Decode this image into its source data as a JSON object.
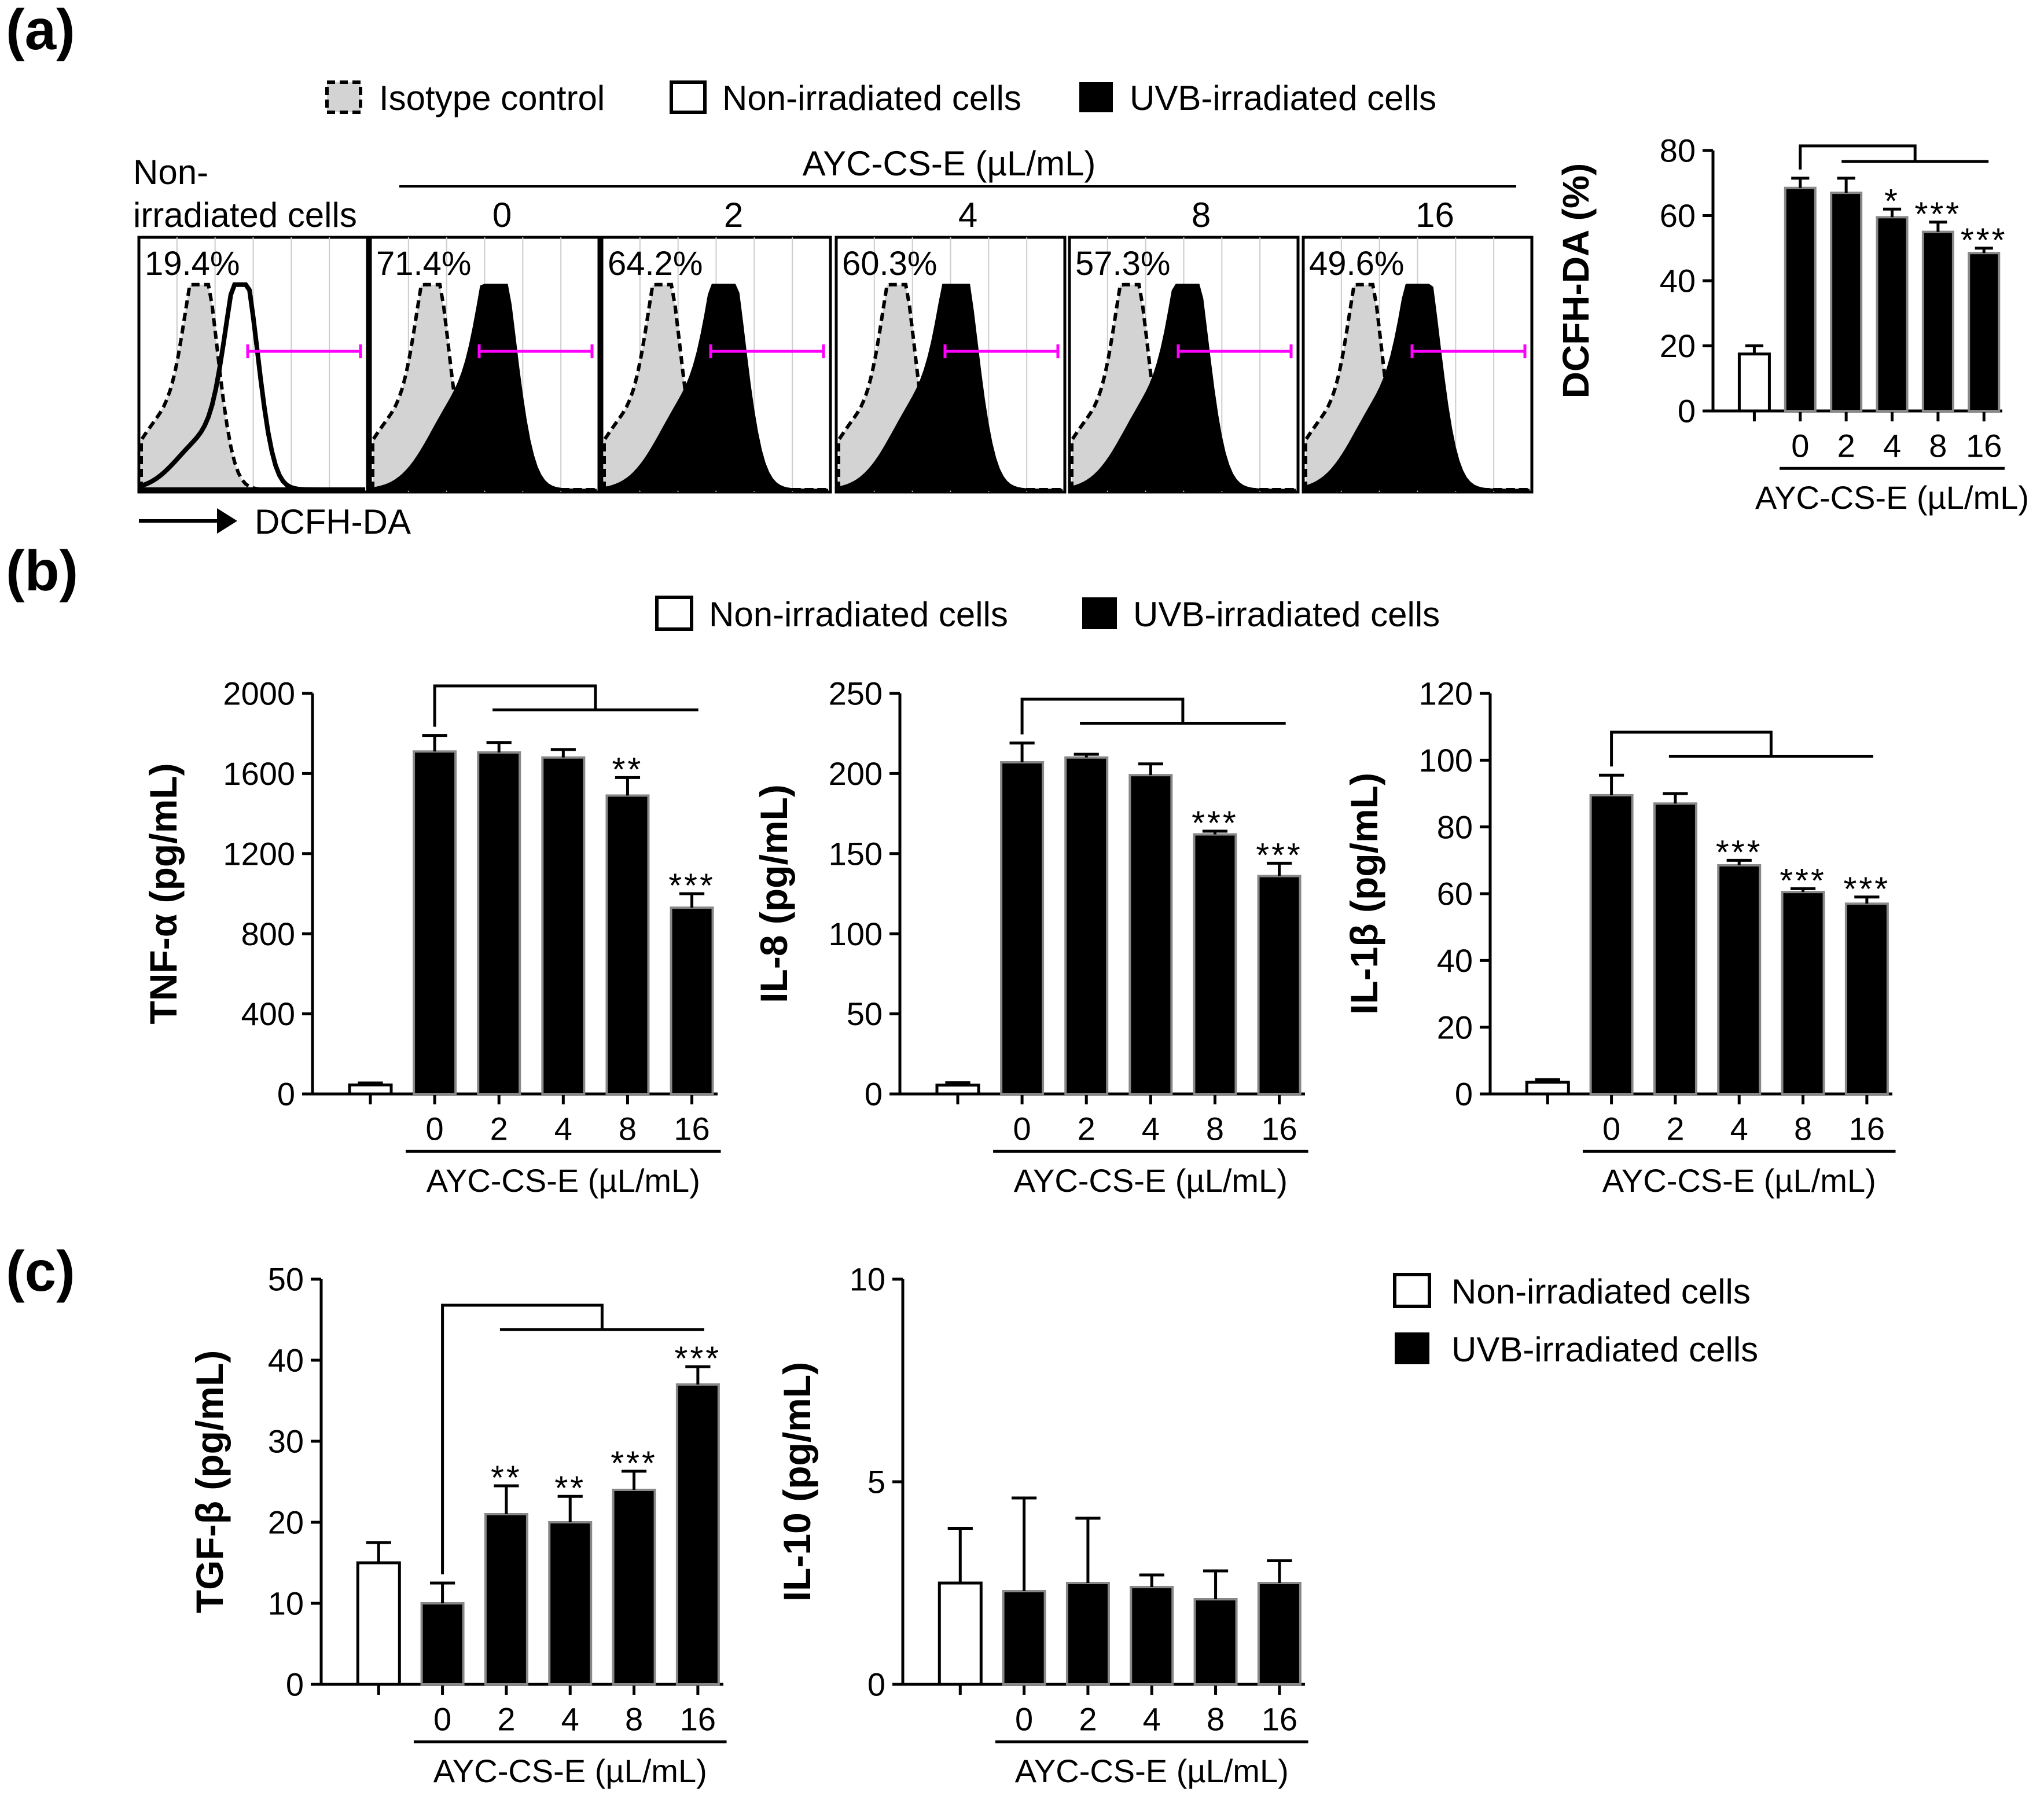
{
  "panel_labels": {
    "a": "(a)",
    "b": "(b)",
    "c": "(c)"
  },
  "legend_a": {
    "isotype": "Isotype control",
    "non": "Non-irradiated cells",
    "uvb": "UVB-irradiated cells"
  },
  "legend_b": {
    "non": "Non-irradiated cells",
    "uvb": "UVB-irradiated cells"
  },
  "legend_c": {
    "non": "Non-irradiated cells",
    "uvb": "UVB-irradiated cells"
  },
  "colors": {
    "gate": "#ff00ff",
    "isotype_fill": "#d3d3d3",
    "uvb": "#000000",
    "non": "#ffffff",
    "bar_edge": "#888888"
  },
  "flow": {
    "non_label_1": "Non-",
    "non_label_2": "irradiated cells",
    "conc_title": "AYC-CS-E (µL/mL)",
    "doses": [
      "0",
      "2",
      "4",
      "8",
      "16"
    ],
    "percents": [
      "19.4%",
      "71.4%",
      "64.2%",
      "60.3%",
      "57.3%",
      "49.6%"
    ],
    "x_axis_label": "DCFH-DA"
  },
  "chart_data": [
    {
      "type": "bar",
      "id": "dcfh",
      "ylabel": "DCFH-DA (%)",
      "ylim": [
        0,
        80
      ],
      "yticks": [
        "0",
        "20",
        "40",
        "60",
        "80"
      ],
      "categories": [
        "",
        "0",
        "2",
        "4",
        "8",
        "16"
      ],
      "xlabel": "AYC-CS-E (µL/mL)",
      "series": [
        {
          "name": "Non-irradiated cells",
          "values": [
            17.5,
            null,
            null,
            null,
            null,
            null
          ],
          "errors": [
            2.5,
            null,
            null,
            null,
            null,
            null
          ]
        },
        {
          "name": "UVB-irradiated cells",
          "values": [
            null,
            68.5,
            67,
            59.5,
            55,
            48.5
          ],
          "errors": [
            null,
            3,
            4.5,
            2.5,
            3,
            1.5
          ]
        }
      ],
      "annotations": [
        "",
        "",
        "",
        "*",
        "***",
        "***"
      ]
    },
    {
      "type": "bar",
      "id": "tnf",
      "ylabel": "TNF-α (pg/mL)",
      "ylim": [
        0,
        2000
      ],
      "yticks": [
        "0",
        "400",
        "800",
        "1200",
        "1600",
        "2000"
      ],
      "categories": [
        "",
        "0",
        "2",
        "4",
        "8",
        "16"
      ],
      "xlabel": "AYC-CS-E (µL/mL)",
      "series": [
        {
          "name": "Non-irradiated cells",
          "values": [
            45,
            null,
            null,
            null,
            null,
            null
          ],
          "errors": [
            10,
            null,
            null,
            null,
            null,
            null
          ]
        },
        {
          "name": "UVB-irradiated cells",
          "values": [
            null,
            1710,
            1705,
            1680,
            1490,
            930
          ],
          "errors": [
            null,
            80,
            50,
            40,
            90,
            70
          ]
        }
      ],
      "annotations": [
        "",
        "",
        "",
        "",
        "**",
        "***"
      ]
    },
    {
      "type": "bar",
      "id": "il8",
      "ylabel": "IL-8 (pg/mL)",
      "ylim": [
        0,
        250
      ],
      "yticks": [
        "0",
        "50",
        "100",
        "150",
        "200",
        "250"
      ],
      "categories": [
        "",
        "0",
        "2",
        "4",
        "8",
        "16"
      ],
      "xlabel": "AYC-CS-E (µL/mL)",
      "series": [
        {
          "name": "Non-irradiated cells",
          "values": [
            5.5,
            null,
            null,
            null,
            null,
            null
          ],
          "errors": [
            1.5,
            null,
            null,
            null,
            null,
            null
          ]
        },
        {
          "name": "UVB-irradiated cells",
          "values": [
            null,
            207,
            210,
            199,
            162,
            136
          ],
          "errors": [
            null,
            12,
            2,
            7,
            2,
            8
          ]
        }
      ],
      "annotations": [
        "",
        "",
        "",
        "",
        "***",
        "***"
      ]
    },
    {
      "type": "bar",
      "id": "il1b",
      "ylabel": "IL-1β (pg/mL)",
      "ylim": [
        0,
        120
      ],
      "yticks": [
        "0",
        "20",
        "40",
        "60",
        "80",
        "100",
        "120"
      ],
      "categories": [
        "",
        "0",
        "2",
        "4",
        "8",
        "16"
      ],
      "xlabel": "AYC-CS-E (µL/mL)",
      "series": [
        {
          "name": "Non-irradiated cells",
          "values": [
            3.5,
            null,
            null,
            null,
            null,
            null
          ],
          "errors": [
            0.8,
            null,
            null,
            null,
            null,
            null
          ]
        },
        {
          "name": "UVB-irradiated cells",
          "values": [
            null,
            89.5,
            87,
            68.5,
            60.5,
            57
          ],
          "errors": [
            null,
            6,
            3,
            1.5,
            1,
            2
          ]
        }
      ],
      "annotations": [
        "",
        "",
        "",
        "***",
        "***",
        "***"
      ]
    },
    {
      "type": "bar",
      "id": "tgf",
      "ylabel": "TGF-β (pg/mL)",
      "ylim": [
        0,
        50
      ],
      "yticks": [
        "0",
        "10",
        "20",
        "30",
        "40",
        "50"
      ],
      "categories": [
        "",
        "0",
        "2",
        "4",
        "8",
        "16"
      ],
      "xlabel": "AYC-CS-E (µL/mL)",
      "series": [
        {
          "name": "Non-irradiated cells",
          "values": [
            15,
            null,
            null,
            null,
            null,
            null
          ],
          "errors": [
            2.5,
            null,
            null,
            null,
            null,
            null
          ]
        },
        {
          "name": "UVB-irradiated cells",
          "values": [
            null,
            10,
            21,
            20,
            24,
            37
          ],
          "errors": [
            null,
            2.5,
            3.5,
            3.2,
            2.3,
            2.2
          ]
        }
      ],
      "annotations": [
        "",
        "",
        "**",
        "**",
        "***",
        "***"
      ]
    },
    {
      "type": "bar",
      "id": "il10",
      "ylabel": "IL-10 (pg/mL)",
      "ylim": [
        0,
        10
      ],
      "yticks": [
        "0",
        "5",
        "10"
      ],
      "categories": [
        "",
        "0",
        "2",
        "4",
        "8",
        "16"
      ],
      "xlabel": "AYC-CS-E (µL/mL)",
      "series": [
        {
          "name": "Non-irradiated cells",
          "values": [
            2.5,
            null,
            null,
            null,
            null,
            null
          ],
          "errors": [
            1.35,
            null,
            null,
            null,
            null,
            null
          ]
        },
        {
          "name": "UVB-irradiated cells",
          "values": [
            null,
            2.3,
            2.5,
            2.4,
            2.1,
            2.5
          ],
          "errors": [
            null,
            2.3,
            1.6,
            0.3,
            0.7,
            0.55
          ]
        }
      ],
      "annotations": [
        "",
        "",
        "",
        "",
        "",
        ""
      ]
    }
  ]
}
